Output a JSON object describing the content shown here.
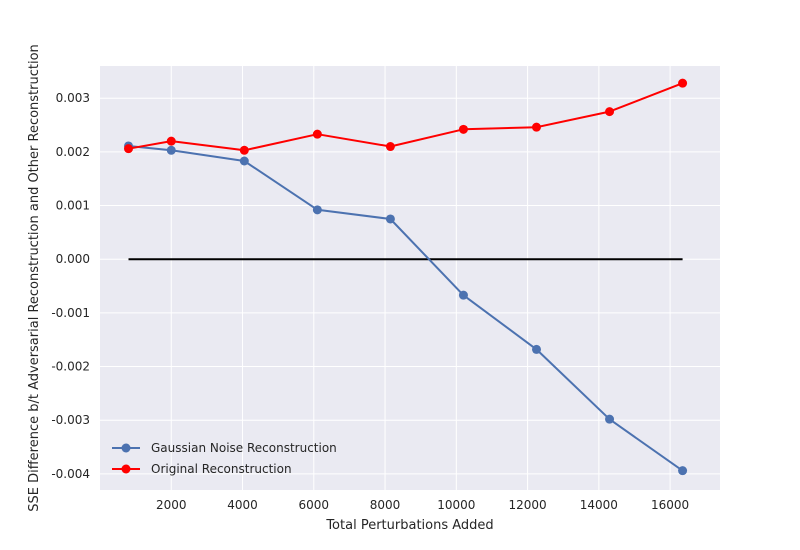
{
  "chart_data": {
    "type": "line",
    "title": "",
    "xlabel": "Total Perturbations Added",
    "ylabel": "SSE Difference b/t Adversarial Reconstruction and Other Reconstruction",
    "xlim": [
      0,
      17400
    ],
    "ylim": [
      -0.0043,
      0.0036
    ],
    "xticks": [
      2000,
      4000,
      6000,
      8000,
      10000,
      12000,
      14000,
      16000
    ],
    "xtick_labels": [
      "2000",
      "4000",
      "6000",
      "8000",
      "10000",
      "12000",
      "14000",
      "16000"
    ],
    "yticks": [
      0.003,
      0.002,
      0.001,
      0.0,
      -0.001,
      -0.002,
      -0.003,
      -0.004
    ],
    "ytick_labels": [
      "0.003",
      "0.002",
      "0.001",
      "0.000",
      "-0.001",
      "-0.002",
      "-0.003",
      "-0.004"
    ],
    "grid": true,
    "style": "seaborn",
    "legend_position": "lower-left",
    "series": [
      {
        "name": "Gaussian Noise Reconstruction",
        "color": "#4c72b0",
        "x": [
          800,
          2000,
          4050,
          6100,
          8150,
          10200,
          12250,
          14300,
          16350
        ],
        "y": [
          0.00211,
          0.00203,
          0.00183,
          0.00092,
          0.00075,
          -0.00067,
          -0.00168,
          -0.00298,
          -0.00394
        ]
      },
      {
        "name": "Original Reconstruction",
        "color": "#ff0000",
        "x": [
          800,
          2000,
          4050,
          6100,
          8150,
          10200,
          12250,
          14300,
          16350
        ],
        "y": [
          0.00206,
          0.0022,
          0.00203,
          0.00233,
          0.0021,
          0.00242,
          0.00246,
          0.00275,
          0.00328
        ]
      }
    ],
    "reference_line": {
      "y": 0.0,
      "x_range": [
        800,
        16350
      ],
      "color": "#000000"
    }
  }
}
